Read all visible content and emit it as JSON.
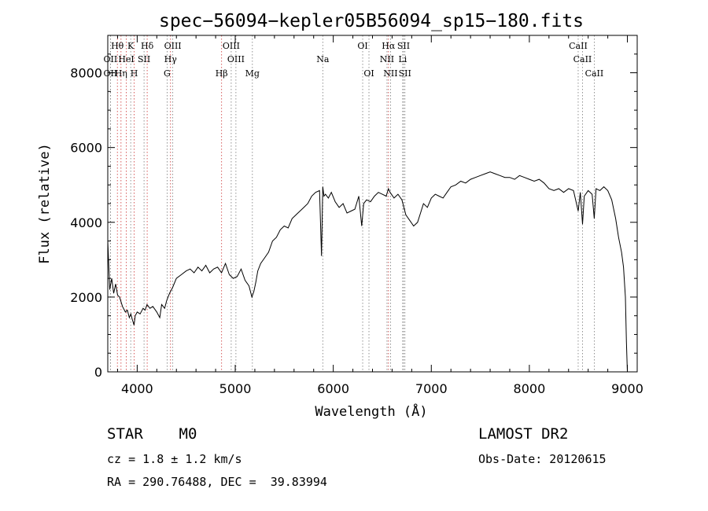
{
  "chart_data": {
    "type": "line",
    "title": "spec−56094−kepler05B56094_sp15−180.fits",
    "xlabel": "Wavelength (Å)",
    "ylabel": "Flux (relative)",
    "xlim": [
      3700,
      9100
    ],
    "ylim": [
      0,
      9000
    ],
    "xticks": [
      4000,
      5000,
      6000,
      7000,
      8000,
      9000
    ],
    "yticks": [
      0,
      2000,
      4000,
      6000,
      8000
    ],
    "grid": false,
    "series": [
      {
        "x": [
          3700,
          3720,
          3740,
          3760,
          3780,
          3800,
          3820,
          3850,
          3880,
          3900,
          3920,
          3935,
          3950,
          3968,
          3980,
          4000,
          4030,
          4060,
          4080,
          4100,
          4130,
          4160,
          4200,
          4230,
          4250,
          4280,
          4300,
          4330,
          4360,
          4400,
          4450,
          4500,
          4540,
          4580,
          4620,
          4660,
          4700,
          4740,
          4780,
          4820,
          4860,
          4900,
          4940,
          4980,
          5020,
          5060,
          5100,
          5140,
          5170,
          5190,
          5210,
          5230,
          5260,
          5300,
          5340,
          5380,
          5420,
          5460,
          5500,
          5540,
          5580,
          5620,
          5660,
          5700,
          5740,
          5780,
          5820,
          5860,
          5880,
          5893,
          5905,
          5920,
          5950,
          5980,
          6020,
          6060,
          6100,
          6140,
          6180,
          6220,
          6260,
          6290,
          6310,
          6340,
          6380,
          6420,
          6460,
          6500,
          6540,
          6563,
          6580,
          6620,
          6660,
          6700,
          6740,
          6780,
          6820,
          6860,
          6890,
          6920,
          6960,
          7000,
          7040,
          7080,
          7120,
          7160,
          7200,
          7250,
          7300,
          7350,
          7400,
          7450,
          7500,
          7550,
          7600,
          7650,
          7700,
          7750,
          7800,
          7850,
          7900,
          7950,
          8000,
          8050,
          8100,
          8150,
          8200,
          8250,
          8300,
          8350,
          8400,
          8450,
          8498,
          8520,
          8542,
          8560,
          8600,
          8640,
          8662,
          8680,
          8720,
          8760,
          8800,
          8840,
          8880,
          8910,
          8940,
          8960,
          8980,
          8990,
          9000
        ],
        "y": [
          3500,
          2200,
          2500,
          2100,
          2350,
          2050,
          2000,
          1750,
          1600,
          1650,
          1450,
          1550,
          1400,
          1250,
          1500,
          1600,
          1550,
          1700,
          1650,
          1800,
          1700,
          1750,
          1600,
          1450,
          1800,
          1700,
          1900,
          2100,
          2250,
          2500,
          2600,
          2700,
          2750,
          2650,
          2800,
          2700,
          2850,
          2650,
          2750,
          2800,
          2650,
          2900,
          2600,
          2500,
          2550,
          2750,
          2450,
          2300,
          2000,
          2150,
          2400,
          2700,
          2900,
          3050,
          3200,
          3500,
          3600,
          3800,
          3900,
          3850,
          4100,
          4200,
          4300,
          4400,
          4500,
          4700,
          4800,
          4850,
          3100,
          4950,
          4700,
          4750,
          4650,
          4800,
          4550,
          4400,
          4500,
          4250,
          4300,
          4350,
          4700,
          3900,
          4500,
          4600,
          4550,
          4700,
          4800,
          4750,
          4700,
          4900,
          4800,
          4650,
          4750,
          4600,
          4200,
          4050,
          3900,
          4000,
          4250,
          4500,
          4400,
          4650,
          4750,
          4700,
          4650,
          4800,
          4950,
          5000,
          5100,
          5050,
          5150,
          5200,
          5250,
          5300,
          5350,
          5300,
          5250,
          5200,
          5200,
          5150,
          5250,
          5200,
          5150,
          5100,
          5150,
          5050,
          4900,
          4850,
          4900,
          4800,
          4900,
          4850,
          4300,
          4800,
          3950,
          4700,
          4850,
          4750,
          4100,
          4900,
          4850,
          4950,
          4850,
          4600,
          4100,
          3600,
          3200,
          2800,
          2000,
          800,
          0
        ]
      }
    ],
    "lines": {
      "labels": [
        "Hθ",
        "K",
        "Hδ",
        "OIII",
        "OIII",
        "OI",
        "Hα",
        "SII",
        "CaII",
        "OII",
        "HeI",
        "SII",
        "Hγ",
        "OIII",
        "Na",
        "NII",
        "Li",
        "CaII",
        "OII",
        "Hη",
        "H",
        "G",
        "Hβ",
        "Mg",
        "OI",
        "NII",
        "SII",
        "CaII"
      ],
      "wavelengths": [
        3798,
        3934,
        4102,
        4363,
        4959,
        6300,
        6563,
        6717,
        8498,
        3727,
        3889,
        4070,
        4340,
        5007,
        5893,
        6548,
        6708,
        8542,
        3727,
        3835,
        3969,
        4305,
        4861,
        5175,
        6364,
        6584,
        6731,
        8662
      ],
      "rows": [
        1,
        1,
        1,
        1,
        1,
        1,
        1,
        1,
        1,
        2,
        2,
        2,
        2,
        2,
        2,
        2,
        2,
        2,
        3,
        3,
        3,
        3,
        3,
        3,
        3,
        3,
        3,
        3
      ]
    }
  },
  "info": {
    "object": "STAR    M0",
    "cz": "cz = 1.8 ± 1.2 km/s",
    "radec": "RA = 290.76488, DEC =  39.83994",
    "survey": "LAMOST DR2",
    "obsdate": "Obs-Date: 20120615"
  }
}
